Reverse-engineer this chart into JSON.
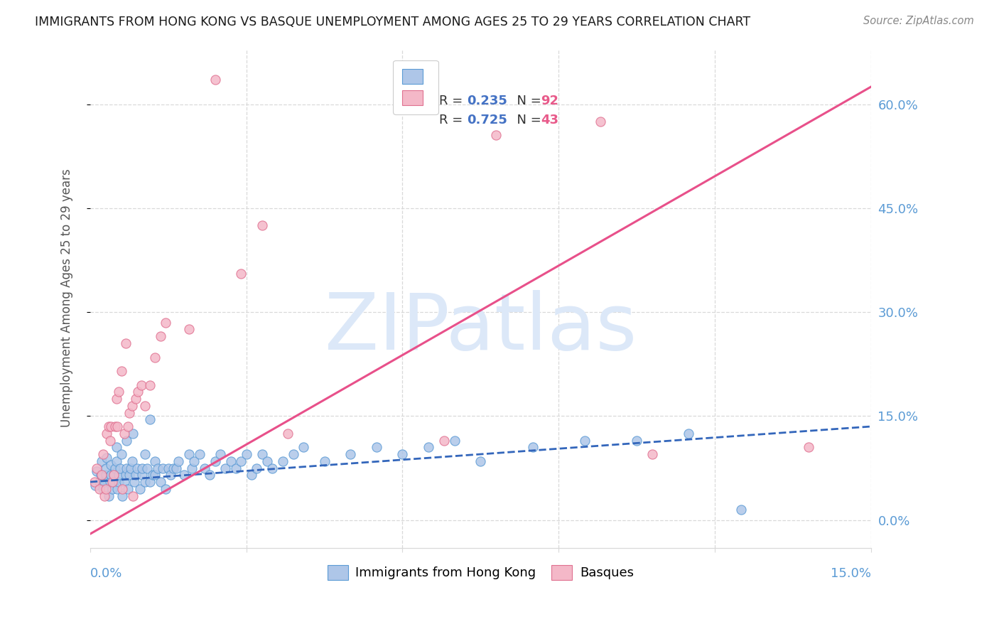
{
  "title": "IMMIGRANTS FROM HONG KONG VS BASQUE UNEMPLOYMENT AMONG AGES 25 TO 29 YEARS CORRELATION CHART",
  "source": "Source: ZipAtlas.com",
  "ylabel": "Unemployment Among Ages 25 to 29 years",
  "right_yticklabels": [
    "0.0%",
    "15.0%",
    "30.0%",
    "45.0%",
    "60.0%"
  ],
  "right_ytick_vals": [
    0,
    15,
    30,
    45,
    60
  ],
  "xmin": 0.0,
  "xmax": 15.0,
  "ymin": -4.0,
  "ymax": 68.0,
  "watermark": "ZIPatlas",
  "blue_r": 0.235,
  "blue_n": 92,
  "pink_r": 0.725,
  "pink_n": 43,
  "blue_scatter_x": [
    0.1,
    0.12,
    0.18,
    0.2,
    0.22,
    0.25,
    0.28,
    0.3,
    0.3,
    0.32,
    0.35,
    0.38,
    0.4,
    0.4,
    0.42,
    0.45,
    0.45,
    0.48,
    0.5,
    0.5,
    0.52,
    0.55,
    0.55,
    0.58,
    0.6,
    0.62,
    0.65,
    0.68,
    0.7,
    0.7,
    0.72,
    0.75,
    0.78,
    0.8,
    0.82,
    0.85,
    0.88,
    0.9,
    0.95,
    1.0,
    1.0,
    1.05,
    1.05,
    1.1,
    1.15,
    1.15,
    1.2,
    1.25,
    1.25,
    1.3,
    1.35,
    1.4,
    1.45,
    1.5,
    1.55,
    1.6,
    1.65,
    1.7,
    1.8,
    1.9,
    1.95,
    2.0,
    2.1,
    2.2,
    2.3,
    2.4,
    2.5,
    2.6,
    2.7,
    2.8,
    2.9,
    3.0,
    3.1,
    3.2,
    3.3,
    3.4,
    3.5,
    3.7,
    3.9,
    4.1,
    4.5,
    5.0,
    5.5,
    6.0,
    6.5,
    7.0,
    7.5,
    8.5,
    9.5,
    10.5,
    11.5,
    12.5
  ],
  "blue_scatter_y": [
    5.0,
    7.0,
    5.5,
    6.5,
    8.5,
    4.5,
    5.5,
    6.5,
    7.5,
    9.0,
    3.5,
    5.5,
    6.5,
    8.0,
    4.5,
    5.5,
    6.5,
    7.5,
    8.5,
    10.5,
    4.5,
    5.5,
    6.5,
    7.5,
    9.5,
    3.5,
    5.5,
    6.5,
    7.5,
    11.5,
    4.5,
    6.5,
    7.5,
    8.5,
    12.5,
    5.5,
    6.5,
    7.5,
    4.5,
    6.5,
    7.5,
    9.5,
    5.5,
    7.5,
    14.5,
    5.5,
    6.5,
    8.5,
    6.5,
    7.5,
    5.5,
    7.5,
    4.5,
    7.5,
    6.5,
    7.5,
    7.5,
    8.5,
    6.5,
    9.5,
    7.5,
    8.5,
    9.5,
    7.5,
    6.5,
    8.5,
    9.5,
    7.5,
    8.5,
    7.5,
    8.5,
    9.5,
    6.5,
    7.5,
    9.5,
    8.5,
    7.5,
    8.5,
    9.5,
    10.5,
    8.5,
    9.5,
    10.5,
    9.5,
    10.5,
    11.5,
    8.5,
    10.5,
    11.5,
    11.5,
    12.5,
    1.5
  ],
  "pink_scatter_x": [
    0.08,
    0.12,
    0.18,
    0.22,
    0.25,
    0.28,
    0.3,
    0.32,
    0.35,
    0.38,
    0.4,
    0.42,
    0.45,
    0.48,
    0.5,
    0.52,
    0.55,
    0.6,
    0.62,
    0.65,
    0.68,
    0.72,
    0.75,
    0.8,
    0.82,
    0.88,
    0.92,
    0.98,
    1.05,
    1.15,
    1.25,
    1.35,
    1.45,
    1.9,
    2.4,
    2.9,
    3.3,
    3.8,
    6.8,
    7.8,
    9.8,
    10.8,
    13.8
  ],
  "pink_scatter_y": [
    5.5,
    7.5,
    4.5,
    6.5,
    9.5,
    3.5,
    4.5,
    12.5,
    13.5,
    11.5,
    13.5,
    5.5,
    6.5,
    13.5,
    17.5,
    13.5,
    18.5,
    21.5,
    4.5,
    12.5,
    25.5,
    13.5,
    15.5,
    16.5,
    3.5,
    17.5,
    18.5,
    19.5,
    16.5,
    19.5,
    23.5,
    26.5,
    28.5,
    27.5,
    63.5,
    35.5,
    42.5,
    12.5,
    11.5,
    55.5,
    57.5,
    9.5,
    10.5
  ],
  "blue_line_x": [
    0.0,
    15.0
  ],
  "blue_line_y": [
    5.5,
    13.5
  ],
  "pink_line_x": [
    0.0,
    15.0
  ],
  "pink_line_y": [
    -2.0,
    62.5
  ],
  "title_color": "#1a1a1a",
  "axis_color": "#5b9bd5",
  "grid_color": "#d9d9d9",
  "blue_scatter_color": "#aec6e8",
  "blue_scatter_edge": "#5b9bd5",
  "pink_scatter_color": "#f4b8c8",
  "pink_scatter_edge": "#e07090",
  "blue_line_color": "#3366bb",
  "pink_line_color": "#e8508a",
  "watermark_color": "#dce8f8",
  "background_color": "#ffffff",
  "legend_r_color": "#4472c4",
  "legend_n_color": "#e85a8a"
}
